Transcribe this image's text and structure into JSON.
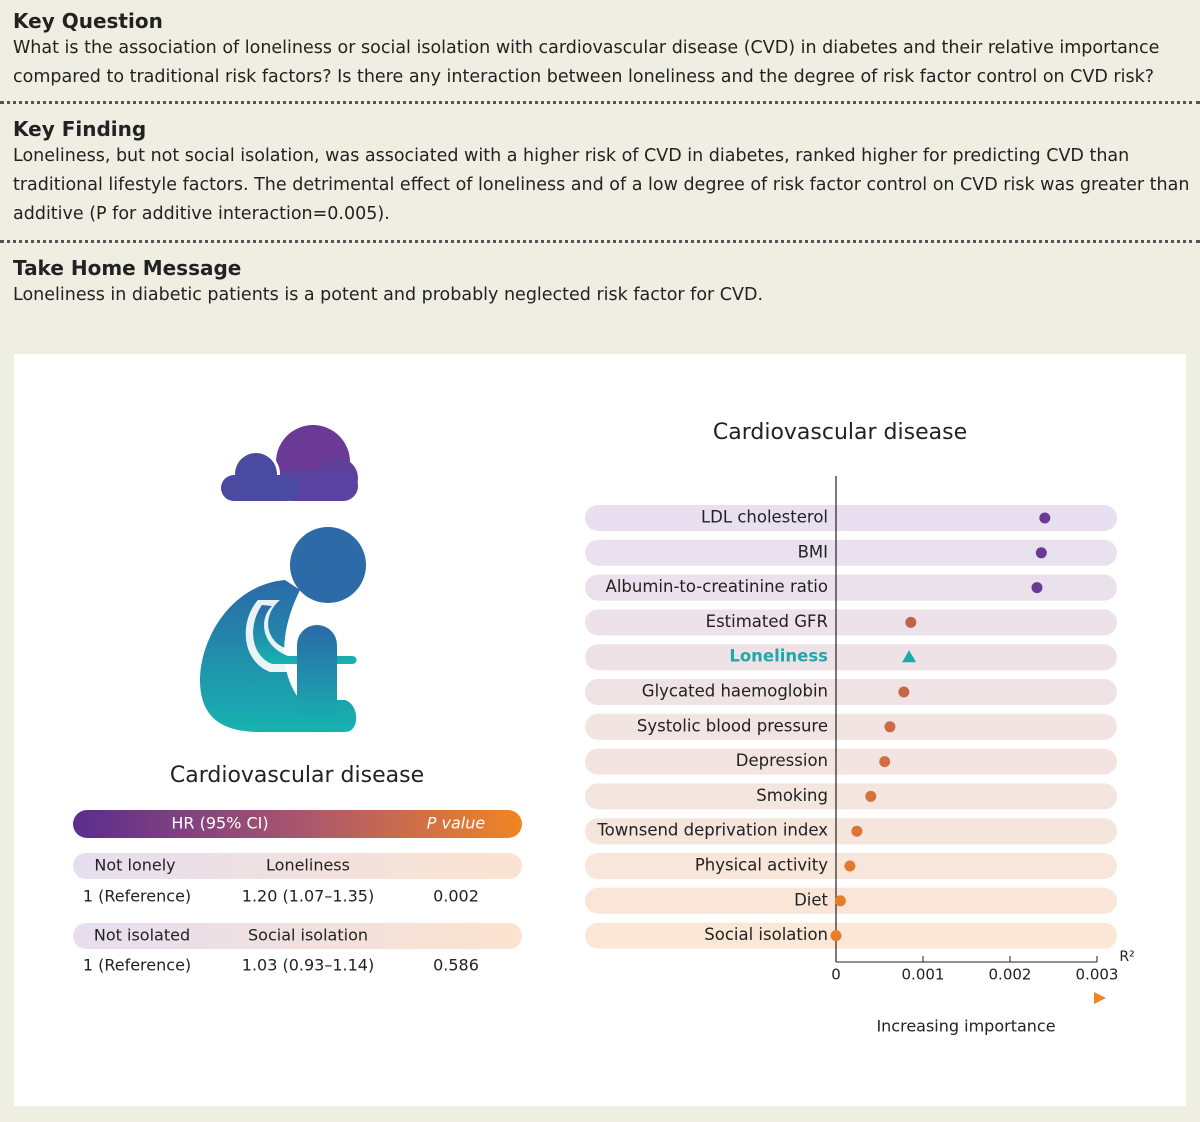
{
  "sections": [
    {
      "heading": "Key Question",
      "lines": [
        "What is the association of loneliness or social isolation with cardiovascular disease (CVD) in diabetes and their relative importance",
        "compared to traditional risk factors? Is there any interaction between loneliness and the degree of risk factor control on CVD risk?"
      ]
    },
    {
      "heading": "Key Finding",
      "lines": [
        "Loneliness, but not social isolation, was associated with a higher risk of CVD in diabetes, ranked higher for predicting CVD than",
        "traditional lifestyle factors. The detrimental effect of loneliness and of a low degree of risk factor control on CVD risk was greater than",
        "additive (P for additive interaction=0.005)."
      ]
    },
    {
      "heading": "Take Home Message",
      "lines": [
        "Loneliness in diabetic patients is a potent and probably neglected risk factor for CVD."
      ]
    }
  ],
  "left_panel": {
    "title": "Cardiovascular disease",
    "header_hr": "HR (95% CI)",
    "header_p": "P value",
    "rows": [
      {
        "reference_group": "Not lonely",
        "exposure": "Loneliness",
        "reference": "1 (Reference)",
        "hr": "1.20 (1.07–1.35)",
        "p": "0.002"
      },
      {
        "reference_group": "Not isolated",
        "exposure": "Social isolation",
        "reference": "1 (Reference)",
        "hr": "1.03 (0.93–1.14)",
        "p": "0.586"
      }
    ]
  },
  "chart_data": {
    "type": "dot",
    "title": "Cardiovascular disease",
    "categories": [
      "LDL cholesterol",
      "BMI",
      "Albumin-to-creatinine ratio",
      "Estimated GFR",
      "Loneliness",
      "Glycated haemoglobin",
      "Systolic blood pressure",
      "Depression",
      "Smoking",
      "Townsend deprivation index",
      "Physical activity",
      "Diet",
      "Social isolation"
    ],
    "values": [
      0.0024,
      0.00236,
      0.00231,
      0.00086,
      0.00084,
      0.00078,
      0.00062,
      0.00056,
      0.0004,
      0.00024,
      0.00016,
      5e-05,
      0.0
    ],
    "colors": [
      "#6b3a96",
      "#6b3a96",
      "#6b3a96",
      "#c0634c",
      "#1ea8a8",
      "#c5654a",
      "#cc6a45",
      "#d06d42",
      "#d6713d",
      "#dd7635",
      "#e2792e",
      "#e67d27",
      "#e97f22"
    ],
    "markers": [
      "circle",
      "circle",
      "circle",
      "circle",
      "triangle",
      "circle",
      "circle",
      "circle",
      "circle",
      "circle",
      "circle",
      "circle",
      "circle"
    ],
    "xlim": [
      0,
      0.003
    ],
    "xticks": [
      0,
      0.001,
      0.002,
      0.003
    ],
    "x_label": "R²",
    "arrow_label": "Increasing importance"
  }
}
